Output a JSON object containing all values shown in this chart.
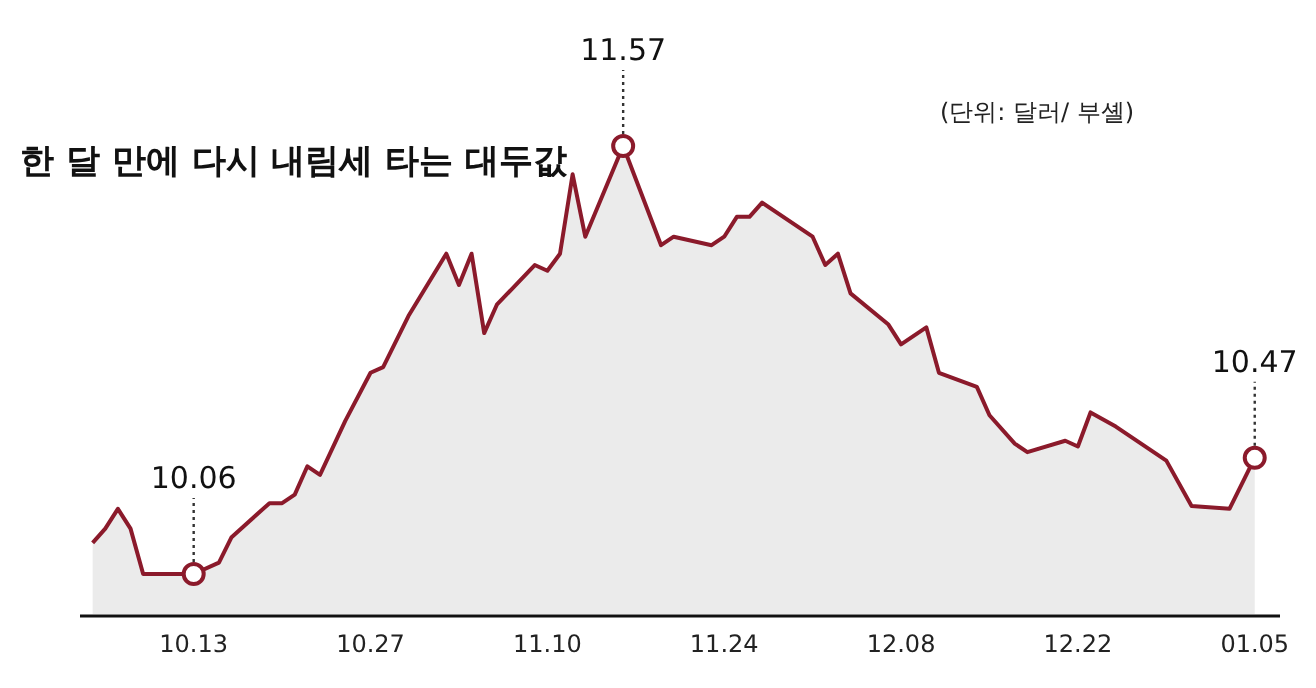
{
  "chart_data": {
    "type": "area",
    "title": "한 달 만에 다시 내림세 타는 대두값",
    "annotations": [
      "(단위: 달러/ 부셸)"
    ],
    "categories": [
      null,
      null,
      null,
      null,
      null,
      null,
      null,
      null,
      "10.13",
      null,
      null,
      null,
      null,
      null,
      null,
      null,
      null,
      null,
      null,
      null,
      null,
      null,
      "10.27",
      null,
      null,
      null,
      null,
      null,
      null,
      null,
      null,
      null,
      null,
      null,
      null,
      null,
      "11.10",
      null,
      null,
      null,
      null,
      null,
      null,
      null,
      null,
      null,
      null,
      null,
      null,
      null,
      "11.24",
      null,
      null,
      null,
      null,
      null,
      null,
      null,
      null,
      null,
      null,
      null,
      null,
      null,
      "12.08",
      null,
      null,
      null,
      null,
      null,
      null,
      null,
      null,
      null,
      null,
      null,
      null,
      null,
      "12.22",
      null,
      null,
      null,
      null,
      null,
      null,
      null,
      null,
      null,
      null,
      null,
      null,
      null,
      "01.05"
    ],
    "tick_labels": "x",
    "series": [
      {
        "color": "#8b1a2b",
        "values": [
          10.17,
          10.22,
          10.29,
          10.22,
          10.06,
          null,
          null,
          null,
          10.06,
          null,
          10.1,
          10.19,
          null,
          null,
          10.31,
          10.31,
          10.34,
          10.44,
          10.41,
          null,
          10.6,
          null,
          10.77,
          10.79,
          null,
          10.97,
          null,
          null,
          11.19,
          11.08,
          11.19,
          10.91,
          11.01,
          null,
          null,
          11.15,
          11.13,
          11.19,
          11.47,
          11.25,
          null,
          null,
          11.57,
          null,
          null,
          11.22,
          11.25,
          null,
          null,
          11.22,
          11.25,
          11.32,
          11.32,
          11.37,
          null,
          null,
          null,
          11.25,
          11.15,
          11.19,
          11.05,
          null,
          null,
          10.94,
          10.87,
          null,
          10.93,
          10.77,
          null,
          null,
          10.72,
          10.62,
          null,
          10.52,
          10.49,
          null,
          null,
          10.53,
          10.51,
          10.63,
          null,
          10.58,
          null,
          null,
          null,
          10.46,
          null,
          10.3,
          null,
          null,
          10.29,
          null,
          10.47
        ],
        "value_labels": [
          null,
          null,
          null,
          null,
          null,
          null,
          null,
          null,
          "10.06",
          null,
          null,
          null,
          null,
          null,
          null,
          null,
          null,
          null,
          null,
          null,
          null,
          null,
          null,
          null,
          null,
          null,
          null,
          null,
          null,
          null,
          null,
          null,
          null,
          null,
          null,
          null,
          null,
          null,
          null,
          null,
          null,
          null,
          "11.57",
          null,
          null,
          null,
          null,
          null,
          null,
          null,
          null,
          null,
          null,
          null,
          null,
          null,
          null,
          null,
          null,
          null,
          null,
          null,
          null,
          null,
          null,
          null,
          null,
          null,
          null,
          null,
          null,
          null,
          null,
          null,
          null,
          null,
          null,
          null,
          null,
          null,
          null,
          null,
          null,
          null,
          null,
          null,
          null,
          null,
          null,
          null,
          null,
          null,
          "10.47"
        ]
      }
    ]
  }
}
